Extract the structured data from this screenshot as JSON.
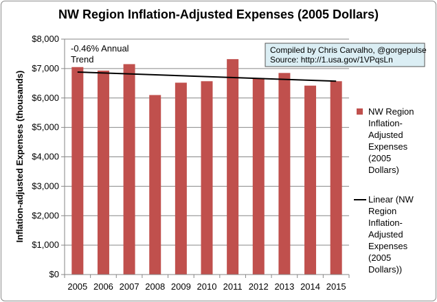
{
  "chart_data": {
    "type": "bar",
    "title": "NW Region Inflation-Adjusted Expenses (2005 Dollars)",
    "xlabel": "",
    "ylabel": "Inflation-adjusted Expenses (thousands)",
    "categories": [
      "2005",
      "2006",
      "2007",
      "2008",
      "2009",
      "2010",
      "2011",
      "2012",
      "2013",
      "2014",
      "2015"
    ],
    "series": [
      {
        "name": "NW Region Inflation-Adjusted Expenses (2005 Dollars)",
        "legend_lines": [
          "NW Region",
          "Inflation-",
          "Adjusted",
          "Expenses",
          "(2005",
          "Dollars)"
        ],
        "color": "#c0504d",
        "values": [
          7050,
          6930,
          7150,
          6100,
          6520,
          6570,
          7320,
          6680,
          6850,
          6420,
          6570
        ]
      }
    ],
    "trendline": {
      "name": "Linear (NW Region Inflation-Adjusted Expenses (2005 Dollars))",
      "legend_lines": [
        "Linear (NW",
        "Region",
        "Inflation-",
        "Adjusted",
        "Expenses",
        "(2005",
        "Dollars))"
      ],
      "color": "#000000",
      "start_value": 6880,
      "end_value": 6570
    },
    "yticks": [
      "$0",
      "$1,000",
      "$2,000",
      "$3,000",
      "$4,000",
      "$5,000",
      "$6,000",
      "$7,000",
      "$8,000"
    ],
    "ylim": [
      0,
      8000
    ],
    "grid": true,
    "legend_position": "right",
    "annotation_lines": [
      "-0.46% Annual",
      "Trend"
    ],
    "source_note_lines": [
      "Compiled by Chris Carvalho, @gorgepulse",
      "Source: http://1.usa.gov/1VPqsLn"
    ],
    "note_box_color": "#dbeef4"
  }
}
